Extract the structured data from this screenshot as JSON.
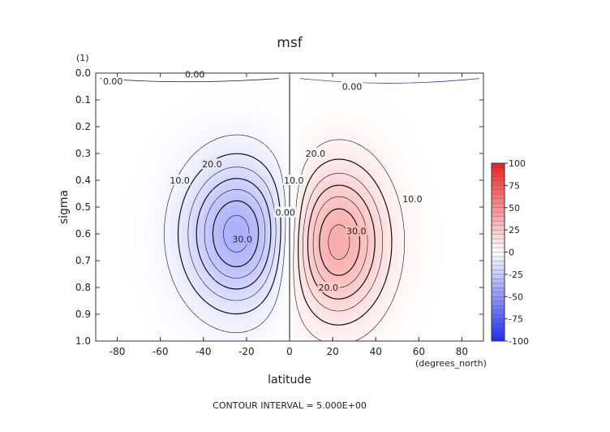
{
  "chart_data": {
    "type": "heatmap",
    "title": "msf",
    "xlabel": "latitude",
    "ylabel": "sigma",
    "x_units": "(degrees_north)",
    "y_units": "(1)",
    "xlim": [
      -90,
      90
    ],
    "ylim": [
      0.0,
      1.0
    ],
    "x_ticks": [
      -80,
      -60,
      -40,
      -20,
      0,
      20,
      40,
      60,
      80
    ],
    "x_tick_labels": [
      "-80",
      "-60",
      "-40",
      "-20",
      "0",
      "20",
      "40",
      "60",
      "80"
    ],
    "y_ticks": [
      0.0,
      0.1,
      0.2,
      0.3,
      0.4,
      0.5,
      0.6,
      0.7,
      0.8,
      0.9,
      1.0
    ],
    "y_tick_labels": [
      "0.0",
      "0.1",
      "0.2",
      "0.3",
      "0.4",
      "0.5",
      "0.6",
      "0.7",
      "0.8",
      "0.9",
      "1.0"
    ],
    "footer": "CONTOUR INTERVAL = 5.000E+00",
    "colorbar": {
      "min": -100,
      "max": 100,
      "ticks": [
        100,
        75,
        50,
        25,
        0,
        -25,
        -50,
        -75,
        -100
      ],
      "tick_labels": [
        "100",
        "75",
        "50",
        "25",
        "0",
        "-25",
        "-50",
        "-75",
        "-100"
      ],
      "colors": {
        "negative": "#1e2cf5",
        "zero": "#ffffff",
        "positive": "#ef2020"
      }
    },
    "cells": {
      "south": {
        "center": [
          -24,
          0.6
        ],
        "peak": -38
      },
      "north": {
        "center": [
          22,
          0.63
        ],
        "peak": 38
      }
    },
    "contour_levels": [
      -35,
      -30,
      -25,
      -20,
      -15,
      -10,
      -5,
      0,
      5,
      10,
      15,
      20,
      25,
      30,
      35
    ],
    "contour_labels": [
      {
        "text": "0.00",
        "lat": -82,
        "sigma": 0.03
      },
      {
        "text": "0.00",
        "lat": -44,
        "sigma": 0.005
      },
      {
        "text": "0.00",
        "lat": 29,
        "sigma": 0.05
      },
      {
        "text": "10.0",
        "lat": -51,
        "sigma": 0.4
      },
      {
        "text": "20.0",
        "lat": -36,
        "sigma": 0.34
      },
      {
        "text": "30.0",
        "lat": -22,
        "sigma": 0.62
      },
      {
        "text": "0.00",
        "lat": -2,
        "sigma": 0.52
      },
      {
        "text": "10.0",
        "lat": 2,
        "sigma": 0.4
      },
      {
        "text": "20.0",
        "lat": 12,
        "sigma": 0.3
      },
      {
        "text": "30.0",
        "lat": 31,
        "sigma": 0.59
      },
      {
        "text": "20.0",
        "lat": 18,
        "sigma": 0.8
      },
      {
        "text": "10.0",
        "lat": 57,
        "sigma": 0.47
      }
    ]
  }
}
